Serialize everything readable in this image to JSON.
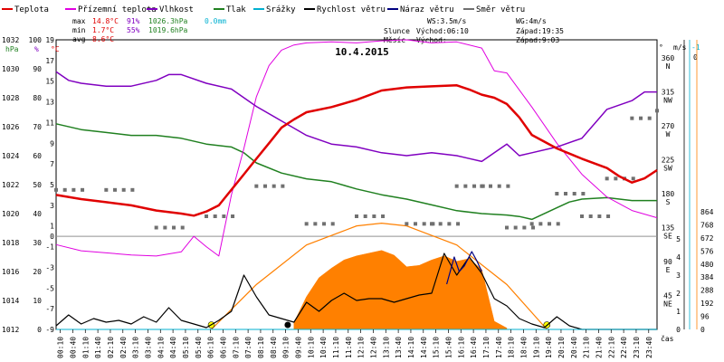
{
  "legend": [
    {
      "label": "Teplota",
      "color": "#e00000"
    },
    {
      "label": "Přízemní teplota",
      "color": "#e000e0"
    },
    {
      "label": "Vlhkost",
      "color": "#8000c0"
    },
    {
      "label": "Tlak",
      "color": "#208020"
    },
    {
      "label": "Srážky",
      "color": "#00b0d0"
    },
    {
      "label": "Rychlost větru",
      "color": "#000000"
    },
    {
      "label": "Náraz větru",
      "color": "#000080"
    },
    {
      "label": "Směr větru",
      "color": "#707070"
    }
  ],
  "stats": {
    "max": {
      "label": "max",
      "temp": "14.8°C",
      "hum": "91%",
      "press": "1026.3hPa",
      "rain": "0.0mm"
    },
    "min": {
      "label": "min",
      "temp": "1.7°C",
      "hum": "55%",
      "press": "1019.6hPa"
    },
    "avg": {
      "label": "avg",
      "temp": "8.6°C"
    }
  },
  "title": "10.4.2015",
  "wind": {
    "ws": "WS:3.5m/s",
    "wg": "WG:4m/s"
  },
  "sun": {
    "label": "Slunce",
    "rise": "Východ:06:10",
    "set": "Západ:19:35"
  },
  "moon": {
    "label": "Měsíc",
    "rise": "Východ:",
    "set": "Západ:9:03"
  },
  "axes": {
    "hpa": {
      "unit": "hPa",
      "ticks": [
        "1012",
        "1014",
        "1016",
        "1018",
        "1020",
        "1022",
        "1024",
        "1026",
        "1028",
        "1030",
        "1032"
      ]
    },
    "pct": {
      "unit": "%",
      "ticks": [
        "0",
        "10",
        "20",
        "30",
        "40",
        "50",
        "60",
        "70",
        "80",
        "90",
        "100"
      ]
    },
    "degc": {
      "unit": "°C",
      "ticks": [
        "-9",
        "-7",
        "-5",
        "-3",
        "-1",
        "1",
        "3",
        "5",
        "7",
        "9",
        "11",
        "13",
        "15",
        "17",
        "19"
      ]
    },
    "dir": {
      "unit": "°",
      "ticks": [
        "360\nN",
        "315\nNW",
        "270\nW",
        "225\nSW",
        "180\nS",
        "135\nSE",
        "90\nE",
        "45\nNE"
      ]
    },
    "ms": {
      "unit": "m/s",
      "ticks": [
        "0",
        "1",
        "2",
        "3",
        "4",
        "5"
      ]
    },
    "mm": {
      "unit": "-1",
      "ticks": [
        "0"
      ]
    },
    "sol": {
      "ticks": [
        "0",
        "96",
        "192",
        "288",
        "384",
        "480",
        "576",
        "672",
        "768",
        "864"
      ]
    },
    "time": {
      "label": "čas",
      "ticks": [
        "00:10",
        "00:40",
        "01:10",
        "01:40",
        "02:10",
        "02:40",
        "03:10",
        "03:40",
        "04:10",
        "04:40",
        "05:10",
        "05:40",
        "06:10",
        "06:40",
        "07:10",
        "07:40",
        "08:10",
        "08:40",
        "09:10",
        "09:40",
        "10:10",
        "10:40",
        "11:10",
        "11:40",
        "12:10",
        "12:40",
        "13:10",
        "13:40",
        "14:10",
        "14:40",
        "15:10",
        "15:40",
        "16:10",
        "16:40",
        "17:10",
        "17:40",
        "18:10",
        "18:40",
        "19:10",
        "19:40",
        "20:10",
        "20:40",
        "21:10",
        "21:40",
        "22:10",
        "22:40",
        "23:10",
        "23:40"
      ]
    }
  },
  "chart_data": {
    "type": "line",
    "title": "10.4.2015",
    "x_unit": "hour of day",
    "series": [
      {
        "name": "Teplota",
        "unit": "°C",
        "x": [
          0,
          1,
          2,
          3,
          4,
          5,
          5.5,
          6,
          6.5,
          7,
          7.5,
          8,
          8.5,
          9,
          9.5,
          10,
          11,
          12,
          13,
          14,
          15,
          16,
          16.5,
          17,
          17.5,
          18,
          18.5,
          19,
          20,
          21,
          22,
          22.5,
          23,
          23.5,
          24
        ],
        "values": [
          4,
          3.6,
          3.3,
          3,
          2.5,
          2.2,
          2,
          2.4,
          3,
          4.5,
          6,
          7.5,
          9,
          10.5,
          11.3,
          12,
          12.5,
          13.2,
          14.1,
          14.4,
          14.5,
          14.6,
          14.2,
          13.7,
          13.4,
          12.8,
          11.5,
          9.8,
          8.5,
          7.5,
          6.6,
          5.8,
          5.2,
          5.6,
          6.4
        ]
      },
      {
        "name": "Přízemní teplota",
        "unit": "°C",
        "x": [
          0,
          1,
          2,
          3,
          4,
          5,
          5.5,
          6,
          6.5,
          7,
          7.5,
          8,
          8.5,
          9,
          9.5,
          10,
          11,
          12,
          13,
          14,
          15,
          16,
          17,
          17.5,
          18,
          19,
          20,
          21,
          22,
          23,
          24
        ],
        "values": [
          -0.8,
          -1.4,
          -1.6,
          -1.8,
          -1.9,
          -1.5,
          0,
          -1,
          -1.9,
          4,
          8.5,
          13.5,
          16.5,
          18,
          18.5,
          18.7,
          18.8,
          18.7,
          18.9,
          19,
          18.7,
          18.8,
          18.2,
          16,
          15.8,
          12.5,
          9,
          6,
          3.8,
          2.5,
          1.8
        ]
      },
      {
        "name": "Vlhkost",
        "unit": "%",
        "x": [
          0,
          0.5,
          1,
          2,
          3,
          4,
          4.5,
          5,
          6,
          7,
          7.5,
          8,
          9,
          10,
          11,
          12,
          13,
          14,
          15,
          16,
          16.5,
          17,
          17.5,
          18,
          18.5,
          19,
          20,
          21,
          22,
          23,
          23.5,
          24
        ],
        "values": [
          89,
          86,
          85,
          84,
          84,
          86,
          88,
          88,
          85,
          83,
          80,
          77,
          72,
          67,
          64,
          63,
          61,
          60,
          61,
          60,
          59,
          58,
          61,
          64,
          60,
          61,
          63,
          66,
          76,
          79,
          82,
          82
        ]
      },
      {
        "name": "Tlak",
        "unit": "hPa",
        "x": [
          0,
          1,
          2,
          3,
          4,
          5,
          6,
          7,
          7.5,
          8,
          9,
          10,
          11,
          12,
          13,
          14,
          15,
          16,
          17,
          18,
          18.5,
          19,
          20,
          20.5,
          21,
          22,
          23,
          24
        ],
        "values": [
          1026.2,
          1025.8,
          1025.6,
          1025.4,
          1025.4,
          1025.2,
          1024.8,
          1024.6,
          1024.2,
          1023.5,
          1022.8,
          1022.4,
          1022.2,
          1021.7,
          1021.3,
          1021.0,
          1020.6,
          1020.2,
          1020.0,
          1019.9,
          1019.8,
          1019.6,
          1020.4,
          1020.8,
          1021.0,
          1021.1,
          1020.9,
          1020.9
        ]
      },
      {
        "name": "Srážky",
        "unit": "mm",
        "x": [
          0,
          24
        ],
        "values": [
          0,
          0
        ]
      },
      {
        "name": "Rychlost větru",
        "unit": "m/s",
        "x": [
          0,
          0.5,
          1,
          1.5,
          2,
          2.5,
          3,
          3.5,
          4,
          4.5,
          5,
          5.5,
          6,
          6.5,
          7,
          7.5,
          8,
          8.5,
          9,
          9.5,
          10,
          10.5,
          11,
          11.5,
          12,
          12.5,
          13,
          13.5,
          14,
          14.5,
          15,
          15.5,
          16,
          16.5,
          17,
          17.5,
          18,
          18.5,
          19,
          19.5,
          20,
          20.5,
          21,
          22,
          23,
          24
        ],
        "values": [
          0.2,
          0.8,
          0.3,
          0.6,
          0.4,
          0.5,
          0.3,
          0.7,
          0.4,
          1.2,
          0.5,
          0.3,
          0.1,
          0.5,
          1.0,
          3.0,
          1.8,
          0.8,
          0.6,
          0.4,
          1.5,
          1.0,
          1.6,
          2.0,
          1.6,
          1.7,
          1.7,
          1.5,
          1.7,
          1.9,
          2.0,
          4.2,
          3.0,
          4.0,
          3.1,
          1.7,
          1.3,
          0.6,
          0.3,
          0.1,
          0.7,
          0.2,
          0.0,
          0.0,
          0.0,
          0.0
        ]
      },
      {
        "name": "Náraz větru",
        "unit": "m/s",
        "x": [
          15.6,
          15.9,
          16.1,
          16.3,
          16.6,
          16.8,
          17.0
        ],
        "values": [
          2.5,
          4.0,
          3.2,
          3.5,
          4.3,
          3.8,
          3.2
        ]
      },
      {
        "name": "Směr větru",
        "unit": "°",
        "x": [
          0,
          2,
          4,
          6,
          8,
          10,
          12,
          14,
          15,
          16,
          17,
          18,
          19,
          20,
          21,
          22,
          23,
          24
        ],
        "values": [
          185,
          185,
          135,
          150,
          190,
          140,
          150,
          140,
          140,
          190,
          190,
          135,
          140,
          180,
          150,
          200,
          280,
          290
        ]
      },
      {
        "name": "sun",
        "unit": "W/m²",
        "x": [
          6.2,
          8,
          10,
          12,
          13,
          14,
          16,
          18,
          19.6
        ],
        "values": [
          0,
          330,
          620,
          760,
          780,
          760,
          620,
          330,
          0
        ]
      },
      {
        "name": "solar",
        "unit": "W/m²",
        "x": [
          9.5,
          10,
          10.5,
          11,
          11.5,
          12,
          12.5,
          13,
          13.5,
          14,
          14.5,
          15,
          15.5,
          16,
          16.5,
          17,
          17.5,
          18
        ],
        "values": [
          50,
          240,
          380,
          450,
          510,
          540,
          560,
          580,
          545,
          460,
          470,
          510,
          540,
          500,
          520,
          440,
          60,
          10
        ]
      }
    ]
  }
}
